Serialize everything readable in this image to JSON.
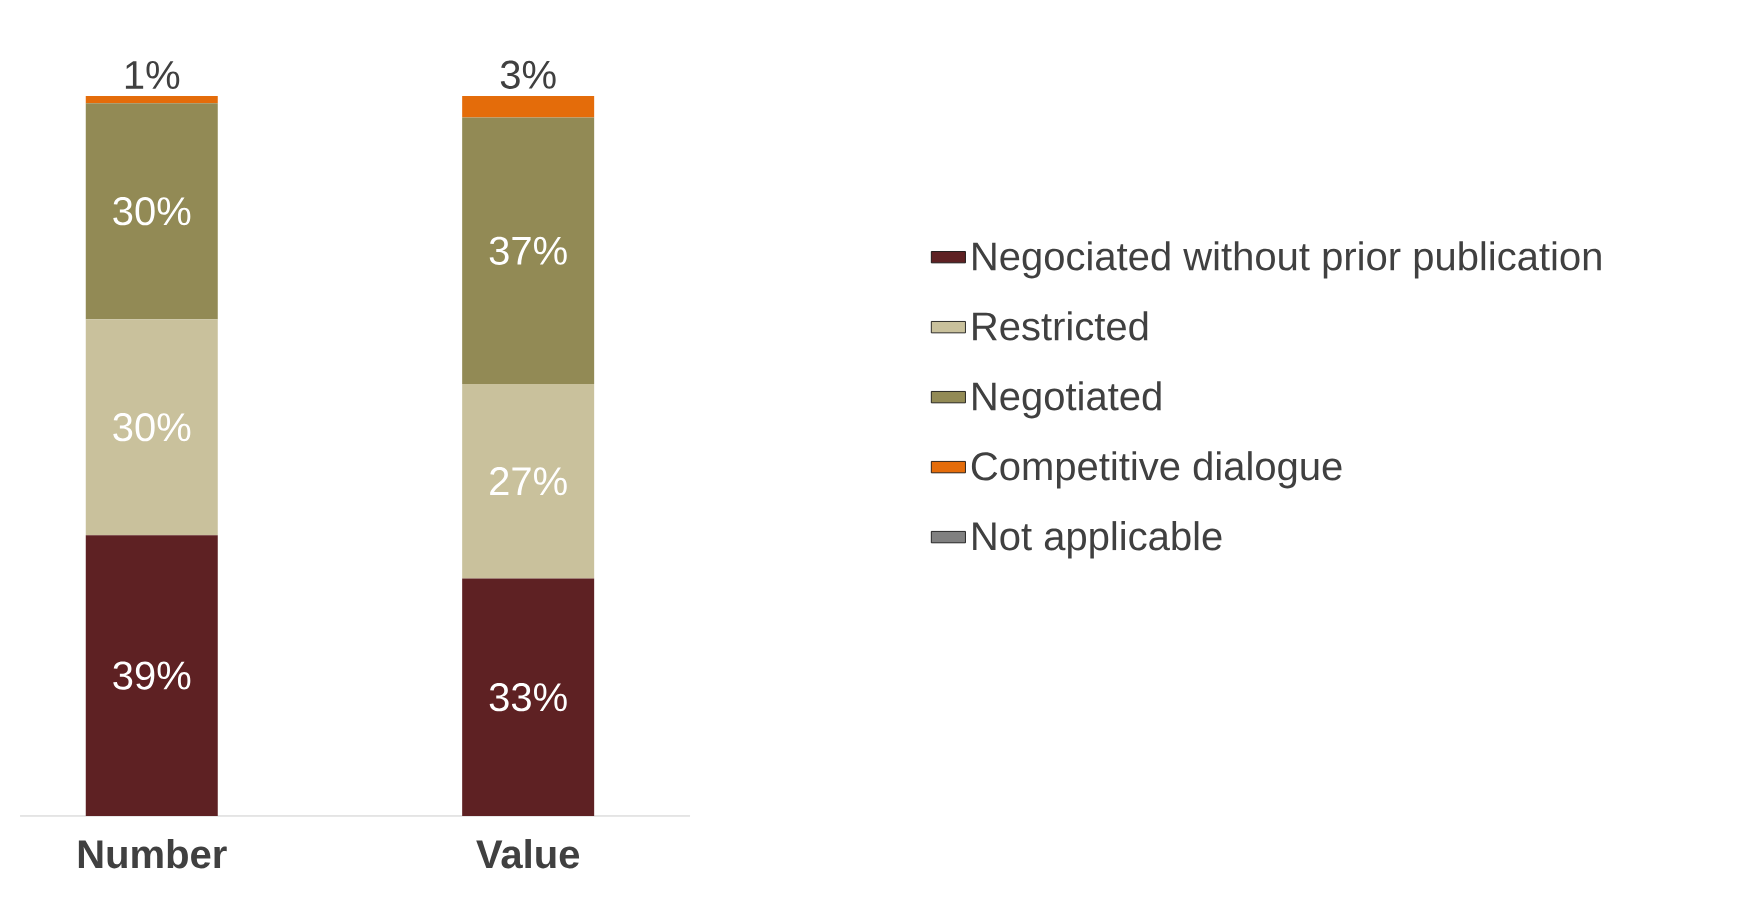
{
  "chart_data": {
    "type": "bar",
    "stacked": true,
    "categories": [
      "Number",
      "Value"
    ],
    "series": [
      {
        "name": "Negociated without prior publication",
        "color": "#5e2123",
        "values": [
          39,
          33
        ],
        "value_labels": [
          "39%",
          "33%"
        ]
      },
      {
        "name": "Restricted",
        "color": "#c9c19c",
        "values": [
          30,
          27
        ],
        "value_labels": [
          "30%",
          "27%"
        ]
      },
      {
        "name": "Negotiated",
        "color": "#928a55",
        "values": [
          30,
          37
        ],
        "value_labels": [
          "30%",
          "37%"
        ]
      },
      {
        "name": "Competitive dialogue",
        "color": "#e46c0a",
        "values": [
          1,
          3
        ],
        "value_labels": [
          "1%",
          "3%"
        ]
      },
      {
        "name": "Not applicable",
        "color": "#808080",
        "values": [
          0,
          0
        ],
        "value_labels": [
          null,
          null
        ]
      }
    ],
    "legend": "right",
    "tick_labels": "x"
  }
}
